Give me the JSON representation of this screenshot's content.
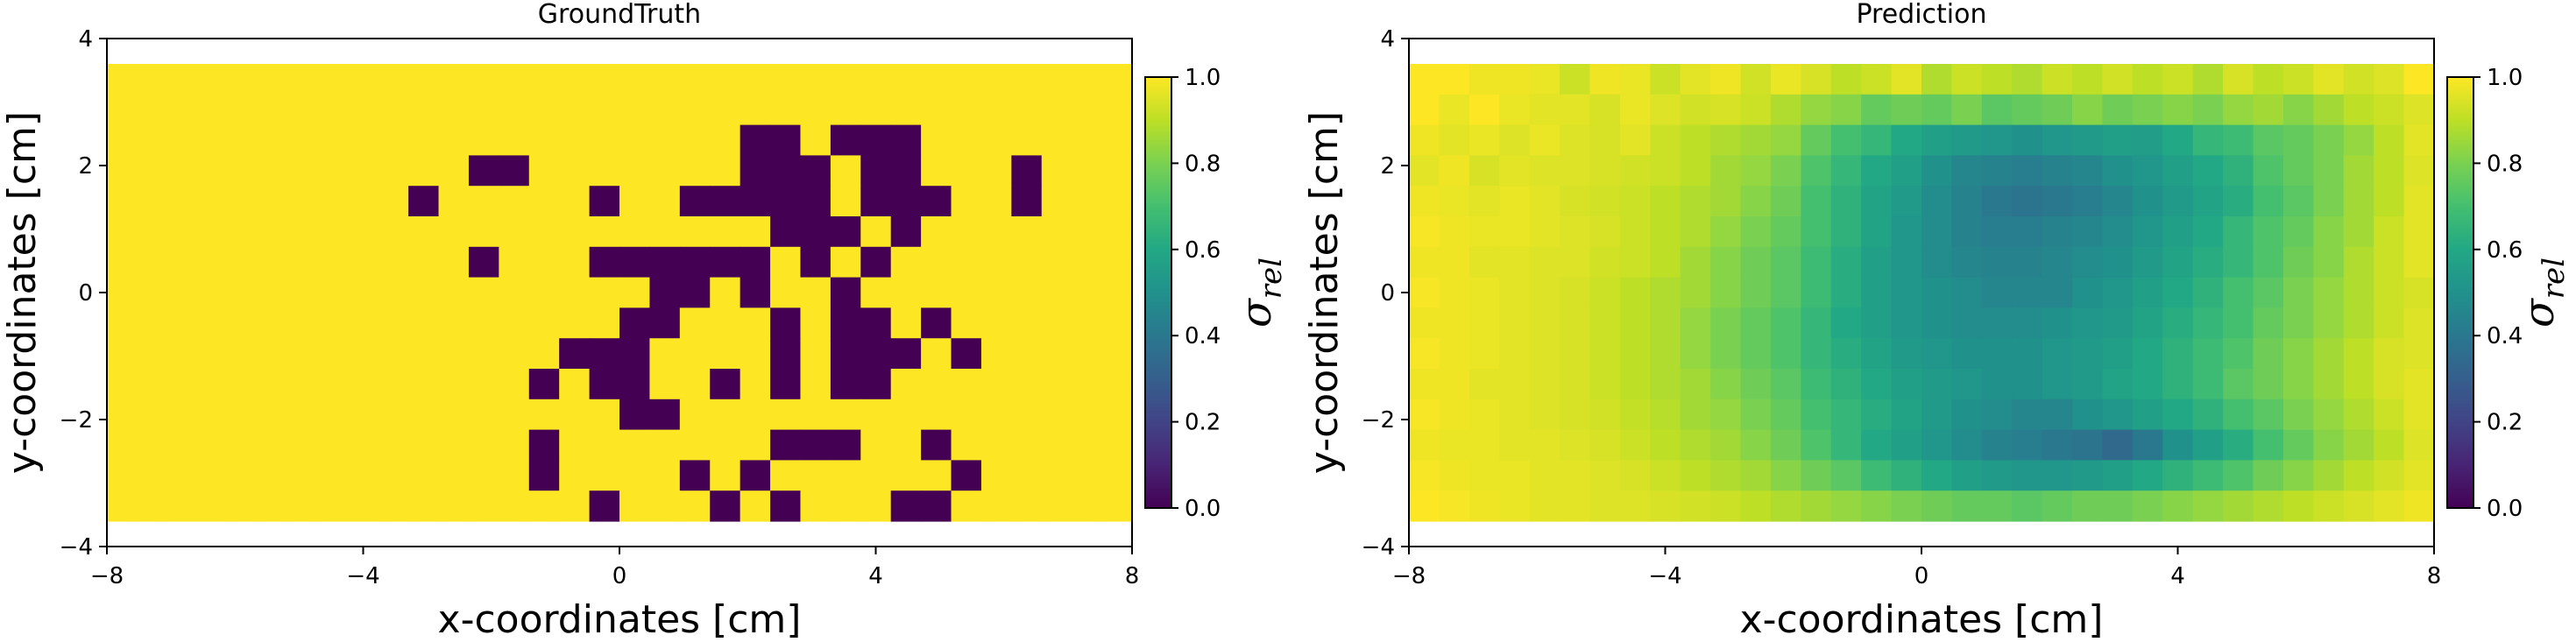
{
  "chart_data": [
    {
      "type": "heatmap",
      "title": "GroundTruth",
      "xlabel": "x-coordinates [cm]",
      "ylabel": "y-coordinates [cm]",
      "xlim": [
        -8,
        8
      ],
      "ylim": [
        -4,
        4
      ],
      "xticks": [
        "−8",
        "−4",
        "0",
        "4",
        "8"
      ],
      "yticks": [
        "−4",
        "−2",
        "0",
        "2",
        "4"
      ],
      "grid": false,
      "colorbar": {
        "label": "σ",
        "subscript": "rel",
        "range": [
          0,
          1
        ],
        "ticks": [
          "0.0",
          "0.2",
          "0.4",
          "0.6",
          "0.8",
          "1.0"
        ],
        "colormap": "viridis"
      },
      "cell_rows": 15,
      "cell_cols": 34,
      "data_extent": {
        "x": [
          -8,
          8
        ],
        "y": [
          -3.6,
          3.6
        ]
      },
      "binary_zero_cells_by_row": [
        [],
        [],
        [
          21,
          22,
          24,
          25,
          26
        ],
        [
          12,
          13,
          21,
          22,
          23,
          25,
          26,
          30
        ],
        [
          10,
          16,
          19,
          20,
          21,
          22,
          23,
          25,
          26,
          27,
          30
        ],
        [
          22,
          23,
          24,
          26
        ],
        [
          12,
          16,
          17,
          18,
          19,
          20,
          21,
          23,
          25
        ],
        [
          18,
          19,
          21,
          24
        ],
        [
          17,
          18,
          22,
          24,
          25,
          27
        ],
        [
          15,
          16,
          17,
          22,
          24,
          25,
          26,
          28
        ],
        [
          14,
          16,
          17,
          20,
          22,
          24,
          25
        ],
        [
          17,
          18
        ],
        [
          14,
          22,
          23,
          24,
          27
        ],
        [
          14,
          19,
          21,
          28
        ],
        [
          16,
          20,
          22,
          26,
          27
        ]
      ]
    },
    {
      "type": "heatmap",
      "title": "Prediction",
      "xlabel": "x-coordinates [cm]",
      "ylabel": "y-coordinates [cm]",
      "xlim": [
        -8,
        8
      ],
      "ylim": [
        -4,
        4
      ],
      "xticks": [
        "−8",
        "−4",
        "0",
        "4",
        "8"
      ],
      "yticks": [
        "−4",
        "−2",
        "0",
        "2",
        "4"
      ],
      "grid": false,
      "colorbar": {
        "label": "σ",
        "subscript": "rel",
        "range": [
          0,
          1
        ],
        "ticks": [
          "0.0",
          "0.2",
          "0.4",
          "0.6",
          "0.8",
          "1.0"
        ],
        "colormap": "viridis"
      },
      "cell_rows": 15,
      "cell_cols": 34,
      "data_extent": {
        "x": [
          -8,
          8
        ],
        "y": [
          -3.6,
          3.6
        ]
      },
      "values_by_row": [
        [
          1.0,
          1.0,
          0.98,
          0.98,
          0.97,
          0.92,
          0.98,
          0.97,
          0.92,
          0.96,
          0.98,
          0.93,
          0.97,
          0.94,
          0.9,
          0.92,
          0.96,
          0.88,
          0.92,
          0.9,
          0.88,
          0.92,
          0.9,
          0.93,
          0.9,
          0.92,
          0.88,
          0.94,
          0.9,
          0.92,
          0.96,
          0.93,
          0.95,
          1.0
        ],
        [
          1.0,
          0.97,
          1.0,
          0.97,
          0.96,
          0.96,
          0.94,
          0.97,
          0.95,
          0.93,
          0.94,
          0.92,
          0.88,
          0.84,
          0.82,
          0.76,
          0.78,
          0.76,
          0.8,
          0.74,
          0.76,
          0.78,
          0.82,
          0.78,
          0.8,
          0.82,
          0.8,
          0.84,
          0.86,
          0.82,
          0.86,
          0.9,
          0.92,
          0.95
        ],
        [
          0.98,
          0.96,
          0.97,
          0.95,
          0.97,
          0.95,
          0.94,
          0.96,
          0.92,
          0.9,
          0.88,
          0.86,
          0.84,
          0.76,
          0.7,
          0.66,
          0.6,
          0.56,
          0.54,
          0.52,
          0.5,
          0.52,
          0.54,
          0.56,
          0.55,
          0.6,
          0.66,
          0.68,
          0.74,
          0.76,
          0.8,
          0.84,
          0.9,
          0.96
        ],
        [
          0.96,
          0.98,
          0.94,
          0.96,
          0.95,
          0.95,
          0.94,
          0.93,
          0.92,
          0.9,
          0.86,
          0.84,
          0.8,
          0.72,
          0.66,
          0.6,
          0.56,
          0.5,
          0.46,
          0.44,
          0.42,
          0.44,
          0.46,
          0.5,
          0.52,
          0.56,
          0.6,
          0.64,
          0.72,
          0.76,
          0.8,
          0.86,
          0.9,
          0.95
        ],
        [
          0.98,
          0.97,
          0.96,
          0.97,
          0.96,
          0.94,
          0.93,
          0.92,
          0.9,
          0.88,
          0.86,
          0.82,
          0.78,
          0.7,
          0.64,
          0.58,
          0.54,
          0.48,
          0.44,
          0.4,
          0.38,
          0.4,
          0.42,
          0.46,
          0.5,
          0.54,
          0.58,
          0.62,
          0.7,
          0.74,
          0.8,
          0.86,
          0.9,
          0.96
        ],
        [
          0.99,
          0.98,
          0.97,
          0.97,
          0.96,
          0.95,
          0.94,
          0.92,
          0.9,
          0.88,
          0.84,
          0.8,
          0.76,
          0.7,
          0.64,
          0.58,
          0.52,
          0.48,
          0.44,
          0.42,
          0.42,
          0.44,
          0.46,
          0.48,
          0.52,
          0.56,
          0.6,
          0.66,
          0.72,
          0.76,
          0.82,
          0.86,
          0.92,
          0.96
        ],
        [
          0.98,
          0.98,
          0.96,
          0.96,
          0.95,
          0.95,
          0.93,
          0.92,
          0.9,
          0.86,
          0.82,
          0.78,
          0.74,
          0.68,
          0.62,
          0.56,
          0.52,
          0.48,
          0.46,
          0.44,
          0.44,
          0.46,
          0.48,
          0.5,
          0.54,
          0.58,
          0.62,
          0.66,
          0.72,
          0.78,
          0.82,
          0.88,
          0.92,
          0.96
        ],
        [
          0.99,
          0.98,
          0.97,
          0.96,
          0.95,
          0.94,
          0.92,
          0.9,
          0.88,
          0.86,
          0.82,
          0.78,
          0.74,
          0.68,
          0.62,
          0.56,
          0.52,
          0.5,
          0.48,
          0.46,
          0.46,
          0.46,
          0.5,
          0.52,
          0.56,
          0.6,
          0.64,
          0.7,
          0.74,
          0.8,
          0.84,
          0.88,
          0.92,
          0.94
        ],
        [
          0.98,
          0.98,
          0.97,
          0.96,
          0.95,
          0.94,
          0.92,
          0.9,
          0.88,
          0.84,
          0.8,
          0.76,
          0.72,
          0.66,
          0.6,
          0.56,
          0.52,
          0.5,
          0.48,
          0.48,
          0.48,
          0.5,
          0.52,
          0.54,
          0.58,
          0.62,
          0.66,
          0.7,
          0.76,
          0.8,
          0.84,
          0.88,
          0.92,
          0.95
        ],
        [
          0.99,
          0.98,
          0.97,
          0.96,
          0.95,
          0.94,
          0.92,
          0.9,
          0.88,
          0.84,
          0.8,
          0.76,
          0.72,
          0.66,
          0.62,
          0.58,
          0.54,
          0.52,
          0.5,
          0.5,
          0.5,
          0.52,
          0.54,
          0.56,
          0.6,
          0.64,
          0.68,
          0.72,
          0.78,
          0.82,
          0.86,
          0.9,
          0.94,
          0.95
        ],
        [
          0.98,
          0.98,
          0.96,
          0.96,
          0.95,
          0.94,
          0.92,
          0.9,
          0.88,
          0.86,
          0.82,
          0.78,
          0.74,
          0.68,
          0.64,
          0.6,
          0.56,
          0.54,
          0.52,
          0.5,
          0.5,
          0.52,
          0.54,
          0.58,
          0.6,
          0.64,
          0.68,
          0.74,
          0.78,
          0.82,
          0.86,
          0.9,
          0.94,
          0.96
        ],
        [
          0.99,
          0.98,
          0.97,
          0.96,
          0.95,
          0.94,
          0.93,
          0.91,
          0.89,
          0.86,
          0.84,
          0.8,
          0.76,
          0.7,
          0.66,
          0.62,
          0.58,
          0.54,
          0.5,
          0.48,
          0.46,
          0.46,
          0.5,
          0.52,
          0.56,
          0.6,
          0.64,
          0.7,
          0.74,
          0.8,
          0.84,
          0.88,
          0.92,
          0.96
        ],
        [
          0.98,
          0.97,
          0.97,
          0.96,
          0.96,
          0.95,
          0.94,
          0.92,
          0.9,
          0.88,
          0.86,
          0.82,
          0.78,
          0.72,
          0.66,
          0.6,
          0.56,
          0.52,
          0.48,
          0.44,
          0.42,
          0.4,
          0.38,
          0.34,
          0.4,
          0.5,
          0.56,
          0.62,
          0.7,
          0.76,
          0.82,
          0.86,
          0.9,
          0.95
        ],
        [
          0.99,
          0.98,
          0.97,
          0.97,
          0.96,
          0.96,
          0.95,
          0.94,
          0.92,
          0.9,
          0.88,
          0.86,
          0.82,
          0.78,
          0.74,
          0.68,
          0.64,
          0.6,
          0.56,
          0.54,
          0.52,
          0.52,
          0.54,
          0.56,
          0.6,
          0.64,
          0.68,
          0.72,
          0.78,
          0.82,
          0.86,
          0.9,
          0.93,
          0.96
        ],
        [
          1.0,
          0.99,
          0.98,
          0.97,
          0.96,
          0.96,
          0.95,
          0.95,
          0.94,
          0.93,
          0.92,
          0.9,
          0.88,
          0.86,
          0.84,
          0.82,
          0.8,
          0.78,
          0.76,
          0.76,
          0.74,
          0.76,
          0.78,
          0.78,
          0.8,
          0.82,
          0.84,
          0.86,
          0.88,
          0.9,
          0.92,
          0.94,
          0.96,
          0.98
        ]
      ]
    }
  ]
}
